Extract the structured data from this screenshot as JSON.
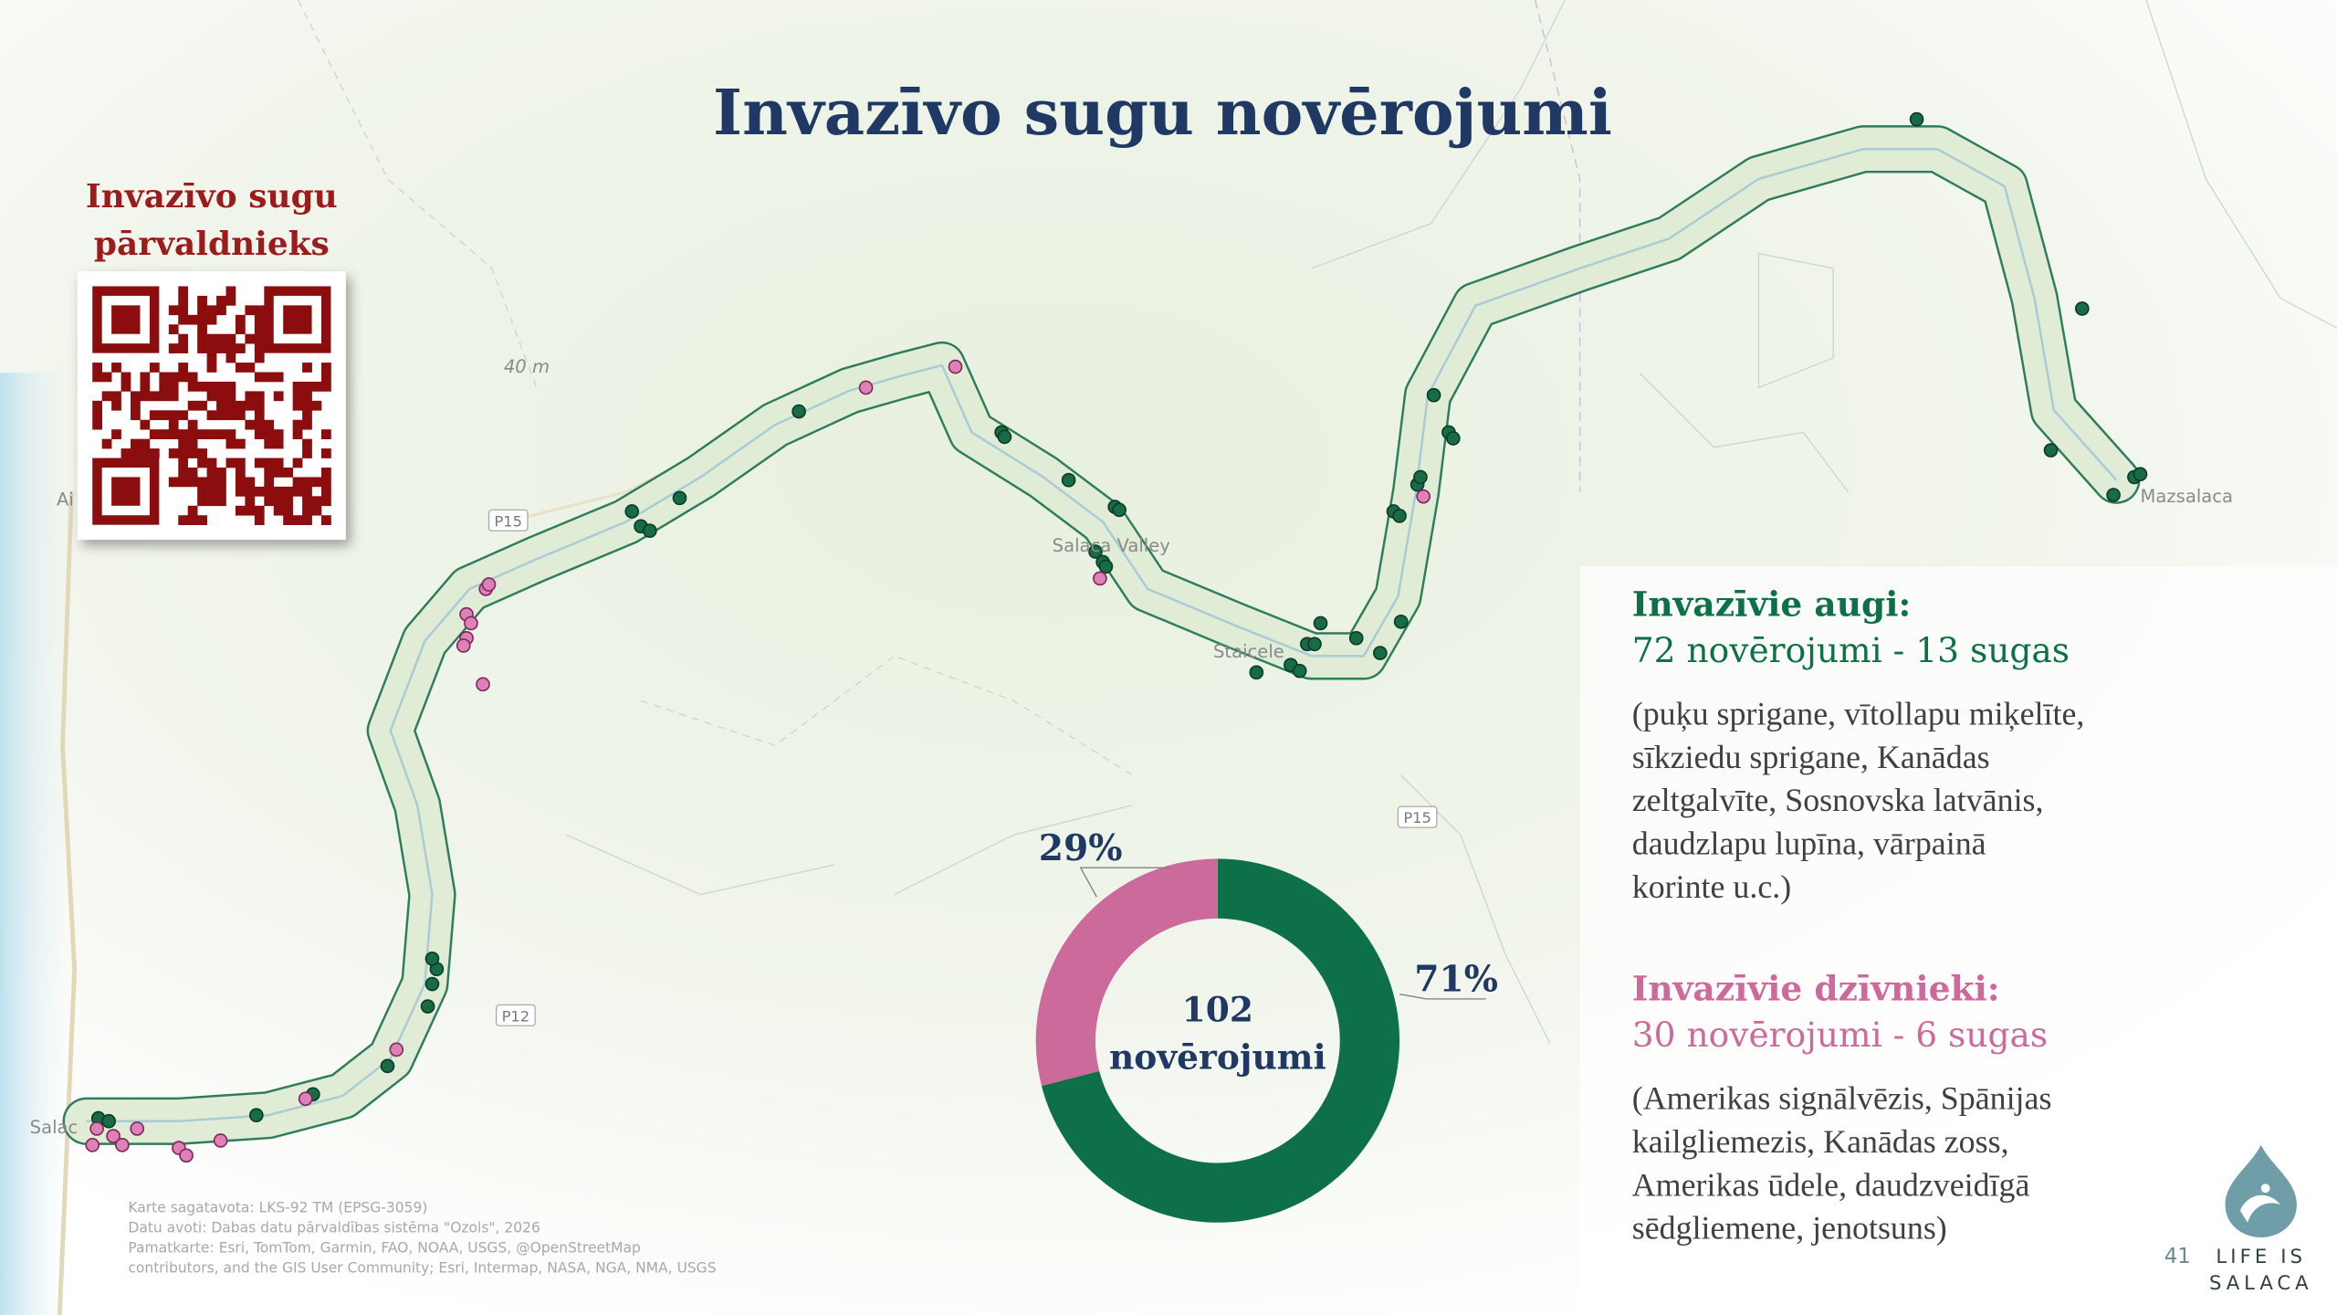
{
  "title": "Invazīvo sugu novērojumi",
  "qr_label": [
    "Invazīvo sugu",
    "pārvaldnieks"
  ],
  "map": {
    "labels": [
      "40 m",
      "P15",
      "Salaca Valley",
      "Staicele",
      "Mazsalaca",
      "P15",
      "P12",
      "Salac",
      "Ai"
    ]
  },
  "chart_data": {
    "type": "donut",
    "values": [
      71,
      29
    ],
    "value_labels": [
      "71%",
      "29%"
    ],
    "colors": [
      "#0e7049",
      "#cc6a9c"
    ],
    "center_label": [
      "102",
      "novērojumi"
    ]
  },
  "legend": [
    {
      "heading": "Invazīvie augi:",
      "summary": "72 novērojumi - 13 sugas",
      "color": "#0e7049",
      "lines": [
        "(puķu sprigane, vītollapu miķelīte,",
        "sīkziedu sprigane, Kanādas",
        "zeltgalvīte, Sosnovska latvānis,",
        "daudzlapu lupīna, vārpainā",
        "korinte u.c.)"
      ]
    },
    {
      "heading": "Invazīvie dzīvnieki:",
      "summary": "30 novērojumi - 6 sugas",
      "color": "#cc6a9c",
      "lines": [
        "(Amerikas signālvēzis, Spānijas",
        "kailgliemezis, Kanādas zoss,",
        "Amerikas ūdele, daudzveidīgā",
        "sēdgliemene, jenotsuns)"
      ]
    }
  ],
  "credits": [
    "Karte sagatavota: LKS-92 TM (EPSG-3059)",
    "Datu avoti: Dabas datu pārvaldības sistēma \"Ozols\", 2026",
    "Pamatkarte: Esri, TomTom, Garmin, FAO, NOAA, USGS, @OpenStreetMap",
    "contributors, and the GIS User Community; Esri, Intermap, NASA, NGA, NMA, USGS"
  ],
  "page_number": "41",
  "logo": [
    "LIFE IS",
    "SALACA"
  ]
}
